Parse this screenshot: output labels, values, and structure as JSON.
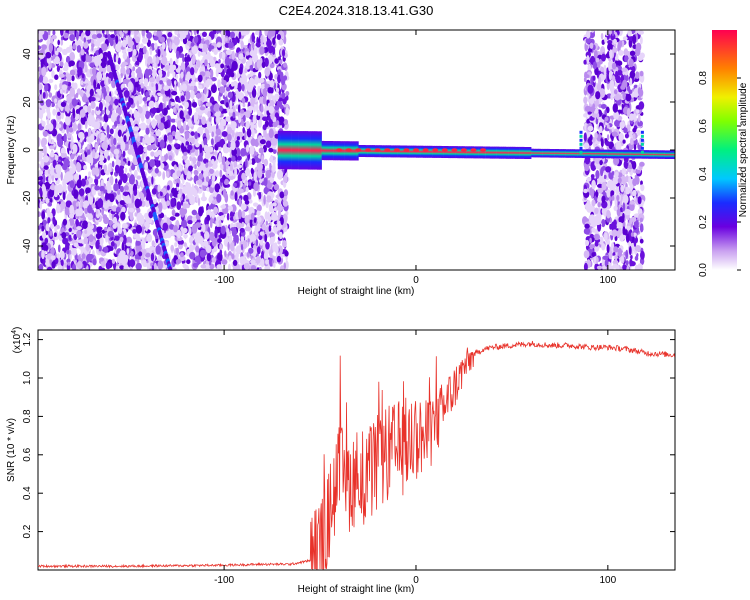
{
  "title": "C2E4.2024.318.13.41.G30",
  "chart_data": [
    {
      "type": "heatmap",
      "xlabel": "Height of straight line (km)",
      "ylabel": "Frequency (Hz)",
      "xlim": [
        -197,
        135
      ],
      "ylim": [
        -50,
        50
      ],
      "xticks": [
        -100,
        0,
        100
      ],
      "yticks": [
        -40,
        -20,
        0,
        20,
        40
      ],
      "colorbar": {
        "label": "Normalized spectral amplitude",
        "range": [
          0,
          1
        ],
        "ticks": [
          0.0,
          0.2,
          0.4,
          0.6,
          0.8
        ]
      },
      "features": {
        "noise_regions_km": [
          [
            -197,
            -67
          ],
          [
            88,
            118
          ]
        ],
        "diagonal_line": {
          "x_start": -160,
          "y_start": 40,
          "x_end": -128,
          "y_end": -50
        },
        "central_ridge": {
          "x_start": -72,
          "x_end": 135,
          "y_start": 0,
          "y_end": -2
        }
      }
    },
    {
      "type": "line",
      "xlabel": "Height of straight line (km)",
      "ylabel": "SNR (10 * v/v)",
      "yscale_label": "(x10",
      "yscale_exp": "4",
      "xlim": [
        -197,
        135
      ],
      "ylim": [
        0,
        1.25
      ],
      "xticks": [
        -100,
        0,
        100
      ],
      "yticks": [
        0.2,
        0.4,
        0.6,
        0.8,
        1.0,
        1.2
      ],
      "series": [
        {
          "color": "#e8322a",
          "x": [
            -197,
            -150,
            -100,
            -80,
            -65,
            -55,
            -48,
            -45,
            -42,
            -40,
            -35,
            -30,
            -25,
            -20,
            -15,
            -10,
            -5,
            0,
            5,
            10,
            15,
            20,
            25,
            30,
            35,
            40,
            50,
            60,
            70,
            80,
            90,
            100,
            110,
            120,
            135
          ],
          "y": [
            0.02,
            0.02,
            0.025,
            0.03,
            0.03,
            0.05,
            0.15,
            0.3,
            0.45,
            0.5,
            0.45,
            0.5,
            0.48,
            0.55,
            0.6,
            0.62,
            0.65,
            0.7,
            0.68,
            0.75,
            0.85,
            0.95,
            1.05,
            1.12,
            1.15,
            1.16,
            1.17,
            1.18,
            1.17,
            1.17,
            1.16,
            1.16,
            1.15,
            1.13,
            1.12
          ]
        }
      ]
    }
  ]
}
